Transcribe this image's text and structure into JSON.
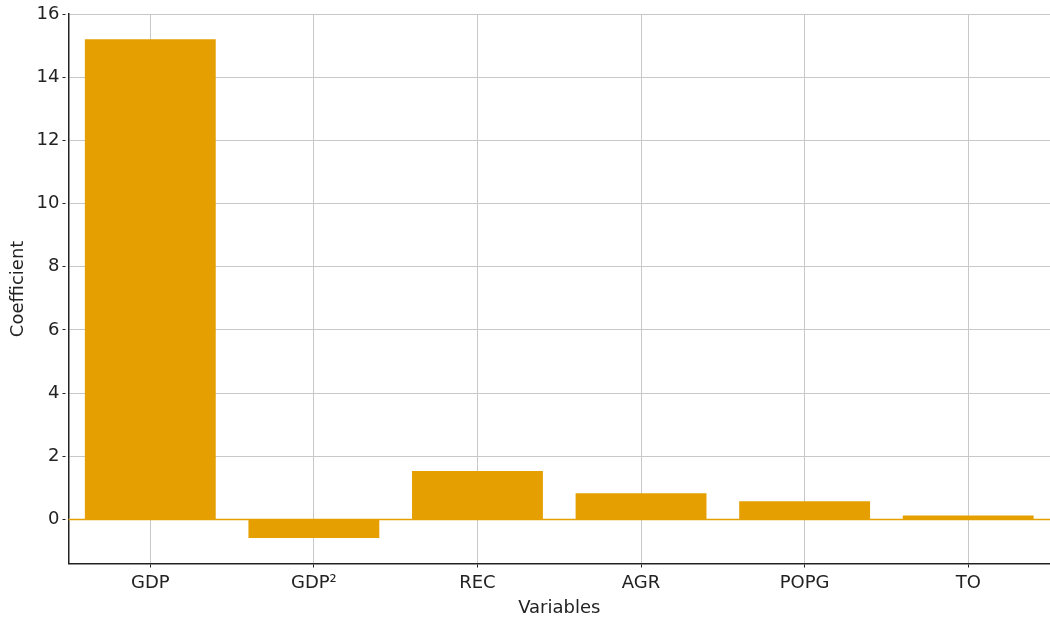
{
  "chart_data": {
    "type": "bar",
    "xlabel": "Variables",
    "ylabel": "Coefficient",
    "categories": [
      "GDP",
      "GDP²",
      "REC",
      "AGR",
      "POPG",
      "TO"
    ],
    "values": [
      15.2,
      -0.58,
      1.54,
      0.83,
      0.58,
      0.13
    ],
    "color": "#e69f00",
    "ylim": [
      -1.4,
      16
    ],
    "yticks": [
      0,
      2,
      4,
      6,
      8,
      10,
      12,
      14,
      16
    ],
    "ref_lines": [
      {
        "axis": "y",
        "value": 0,
        "color": "#e69f00"
      }
    ],
    "grid": true,
    "legend": false
  }
}
